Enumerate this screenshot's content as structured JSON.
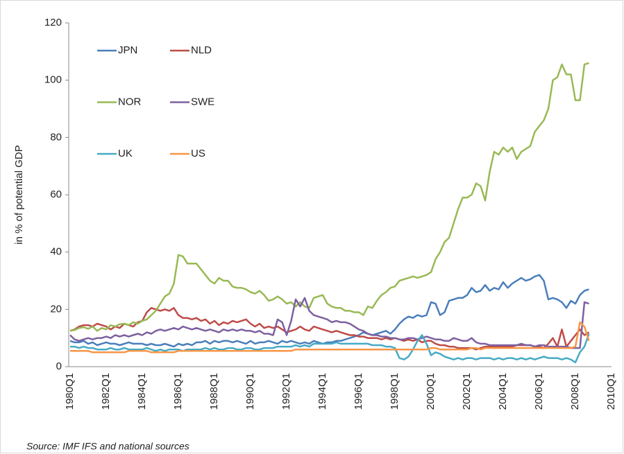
{
  "chart_data": {
    "type": "line",
    "y_label": "in % of potential GDP",
    "source": "Source: IMF IFS and national sources",
    "legend": "top-left",
    "ylim": [
      0,
      120
    ],
    "yticks": [
      0,
      20,
      40,
      60,
      80,
      100,
      120
    ],
    "categories": [
      "1980Q1",
      null,
      null,
      null,
      null,
      null,
      null,
      null,
      "1982Q1",
      null,
      null,
      null,
      null,
      null,
      null,
      null,
      "1984Q1",
      null,
      null,
      null,
      null,
      null,
      null,
      null,
      "1986Q1",
      null,
      null,
      null,
      null,
      null,
      null,
      null,
      "1988Q1",
      null,
      null,
      null,
      null,
      null,
      null,
      null,
      "1990Q1",
      null,
      null,
      null,
      null,
      null,
      null,
      null,
      "1992Q1",
      null,
      null,
      null,
      null,
      null,
      null,
      null,
      "1994Q1",
      null,
      null,
      null,
      null,
      null,
      null,
      null,
      "1996Q1",
      null,
      null,
      null,
      null,
      null,
      null,
      null,
      "1998Q1",
      null,
      null,
      null,
      null,
      null,
      null,
      null,
      "2000Q1",
      null,
      null,
      null,
      null,
      null,
      null,
      null,
      "2002Q1",
      null,
      null,
      null,
      null,
      null,
      null,
      null,
      "2004Q1",
      null,
      null,
      null,
      null,
      null,
      null,
      null,
      "2006Q1",
      null,
      null,
      null,
      null,
      null,
      null,
      null,
      "2008Q1",
      null,
      null,
      null,
      null,
      null,
      null,
      null,
      "2010Q1"
    ],
    "series": [
      {
        "name": "JPN",
        "color": "#4a7ebb",
        "values": [
          9,
          8.5,
          8.5,
          9,
          8,
          8.5,
          7.5,
          8,
          8.5,
          8,
          8,
          7.5,
          8,
          8.5,
          8,
          8,
          8,
          7.5,
          8,
          7.5,
          7.5,
          8,
          7.5,
          7,
          8,
          7.5,
          8,
          7.5,
          8.5,
          8.5,
          9,
          8,
          9,
          8.5,
          9,
          9,
          8.5,
          9,
          8.5,
          8,
          9,
          8,
          8.5,
          8.5,
          9,
          8.5,
          8,
          9,
          8.5,
          9,
          8.5,
          8,
          8.5,
          8,
          9,
          8.5,
          8,
          8.5,
          8.5,
          9,
          9,
          9.5,
          10,
          10.5,
          11,
          12,
          11.5,
          11,
          11.5,
          12,
          12.5,
          11.5,
          13,
          15,
          16.5,
          17.5,
          17,
          18,
          17.5,
          18,
          22.5,
          22,
          18,
          19,
          23,
          23.5,
          24,
          24,
          25,
          27.5,
          26,
          26.5,
          28.5,
          26.5,
          27.5,
          27,
          29.5,
          27.5,
          29,
          30,
          31,
          30,
          30.5,
          31.5,
          32,
          30,
          23.5,
          24,
          23.5,
          22.5,
          20.5,
          23,
          22,
          25,
          26.5,
          27,
          null,
          null,
          null,
          null,
          null
        ]
      },
      {
        "name": "NLD",
        "color": "#be4b48",
        "values": [
          12.5,
          13,
          14,
          14.5,
          14.5,
          14,
          15,
          14.5,
          14,
          13,
          14,
          13.5,
          15,
          14.5,
          14,
          15.5,
          16,
          19,
          20.5,
          20,
          19.5,
          20,
          19.5,
          20.5,
          18,
          17,
          17,
          16.5,
          17,
          16,
          16.5,
          15,
          16,
          14.5,
          15.5,
          15,
          16,
          15.5,
          16,
          16.5,
          15,
          14,
          15,
          13.5,
          14,
          13.5,
          14,
          13,
          12,
          12.5,
          13,
          14,
          13,
          12.5,
          14,
          13.5,
          13,
          12.5,
          12,
          12.5,
          12,
          11.5,
          11,
          11,
          10.5,
          10.5,
          10,
          10,
          10,
          9.5,
          10,
          9.5,
          10,
          9.5,
          9,
          9.5,
          9,
          9.5,
          8.5,
          9,
          9,
          8,
          7.5,
          7.5,
          7,
          7,
          6.5,
          6.5,
          6.5,
          6.5,
          6,
          6.5,
          7,
          7,
          7,
          7,
          7,
          7,
          7,
          7.5,
          7.5,
          7.5,
          7.5,
          7,
          7,
          6.5,
          8,
          10,
          7,
          13,
          7,
          9,
          11,
          13,
          11,
          12,
          null,
          null,
          null,
          null,
          null
        ]
      },
      {
        "name": "NOR",
        "color": "#98b954",
        "values": [
          12.5,
          12.8,
          13.5,
          13.8,
          13.2,
          14,
          12.5,
          13.5,
          13,
          14.5,
          14,
          14.8,
          15,
          14.5,
          15.5,
          15,
          16,
          16.5,
          18,
          19.5,
          22,
          24.5,
          25.5,
          29,
          39,
          38.5,
          36,
          36,
          36,
          34,
          32,
          30,
          29,
          31,
          30,
          30,
          28,
          27.5,
          27.5,
          27,
          26,
          25.5,
          26.5,
          25,
          23,
          23.5,
          24.5,
          23.5,
          22,
          22.5,
          21,
          22.5,
          21,
          20.5,
          24,
          24.5,
          25,
          22,
          21,
          20.5,
          20.5,
          19.5,
          19.5,
          19,
          19,
          18,
          21,
          20.5,
          23,
          25,
          26,
          27.5,
          28,
          30,
          30.5,
          31,
          31.5,
          31,
          31.5,
          32,
          33,
          37.5,
          40,
          43.5,
          45,
          50,
          55,
          59,
          59,
          60,
          64,
          63,
          58,
          68,
          75,
          74,
          76.5,
          75,
          76.5,
          72.5,
          75,
          76,
          77,
          82,
          84,
          86,
          90,
          100,
          101,
          105.5,
          102,
          102,
          93,
          93,
          105.5,
          106,
          null,
          null,
          null,
          null,
          null
        ]
      },
      {
        "name": "SWE",
        "color": "#7d60a0",
        "values": [
          11,
          9.5,
          9,
          9.5,
          10,
          9.5,
          10,
          10,
          10.5,
          10,
          11,
          10.5,
          11,
          10.5,
          11,
          11.5,
          11,
          12,
          11.5,
          12.5,
          13,
          12.5,
          13,
          13.5,
          13,
          14,
          13.5,
          13,
          13.5,
          13,
          12.5,
          13,
          12.5,
          12,
          13,
          12.5,
          13,
          12.5,
          13,
          12.5,
          12.5,
          12,
          12.5,
          11.5,
          11.5,
          11,
          16.5,
          15.5,
          11,
          16,
          23.5,
          21,
          24,
          19.5,
          18,
          17.5,
          17,
          16.5,
          15.5,
          16,
          15.5,
          15.5,
          15,
          14,
          13,
          12.5,
          11.5,
          11,
          11,
          10.5,
          10.5,
          10,
          10,
          9.5,
          9.5,
          10,
          10,
          9.5,
          10,
          10.5,
          10,
          9.5,
          9.5,
          9,
          9,
          10,
          9.5,
          9,
          9,
          10,
          8.5,
          8,
          8,
          7.5,
          7.5,
          7.5,
          7.5,
          7.5,
          7.5,
          7.5,
          8,
          7.5,
          7.5,
          7,
          7.5,
          7.5,
          7,
          7,
          7,
          7,
          7,
          6.5,
          6.5,
          6.5,
          22.5,
          22,
          null,
          null,
          null,
          null,
          null
        ]
      },
      {
        "name": "UK",
        "color": "#46aac5",
        "values": [
          7,
          7,
          6.5,
          7,
          6.5,
          6.5,
          6,
          6,
          6,
          6.5,
          6,
          6,
          6.5,
          6,
          6,
          6,
          6,
          6.5,
          6,
          5.5,
          6,
          5.5,
          6,
          6,
          6,
          5.5,
          6,
          6,
          6,
          6,
          6.5,
          6,
          6.5,
          6,
          6,
          6.5,
          6.5,
          6,
          6,
          6.5,
          6.5,
          6,
          6,
          6.5,
          6.5,
          6.5,
          7,
          7,
          7,
          7,
          7.5,
          7,
          7.5,
          7,
          8,
          8,
          8,
          8,
          8,
          8.5,
          8,
          8,
          8,
          8,
          8,
          8,
          8,
          7.5,
          7.5,
          7.5,
          7,
          7,
          6.5,
          3,
          2.5,
          3.5,
          6,
          9,
          11,
          8,
          4,
          5,
          4.5,
          3.5,
          3,
          2.5,
          3,
          2.5,
          3,
          3,
          2.5,
          3,
          3,
          3,
          2.5,
          3,
          2.5,
          3,
          3,
          2.5,
          3,
          2.5,
          3,
          2.5,
          3,
          3.5,
          3,
          3,
          3,
          2.5,
          3,
          2.5,
          1.5,
          5,
          7,
          11.5,
          null,
          null,
          null,
          null,
          null
        ]
      },
      {
        "name": "US",
        "color": "#f79646",
        "values": [
          5.5,
          5.5,
          5.5,
          5.5,
          5.5,
          5,
          5,
          5,
          5,
          5,
          5,
          5,
          5,
          5.5,
          5.5,
          5.5,
          5.5,
          5.5,
          5,
          5,
          5,
          5,
          5,
          5,
          5.5,
          5.5,
          5.5,
          5.5,
          5.5,
          5.5,
          5.5,
          5.5,
          5.5,
          5.5,
          5.5,
          5.5,
          5.5,
          5.5,
          5.5,
          5.5,
          5.5,
          5.5,
          5.5,
          5.5,
          5.5,
          5.5,
          5.5,
          5.5,
          5.5,
          5.5,
          6,
          6,
          6,
          6,
          6,
          6,
          6,
          6,
          6,
          6,
          6,
          6,
          6,
          6,
          6,
          6,
          6,
          6,
          6,
          6,
          6,
          6,
          6,
          6,
          6,
          6,
          6,
          6,
          6,
          6,
          6.5,
          6.5,
          6,
          6,
          6,
          6,
          6,
          6,
          6,
          6.5,
          6.5,
          6,
          6.5,
          6.5,
          6.5,
          6.5,
          6.5,
          6.5,
          6.5,
          6.5,
          6.5,
          6.5,
          6.5,
          6.5,
          6.5,
          6.5,
          6.5,
          6.5,
          6.5,
          6.5,
          6.5,
          6.5,
          7,
          15.5,
          14,
          9,
          null,
          null,
          null,
          null,
          null
        ]
      }
    ]
  }
}
